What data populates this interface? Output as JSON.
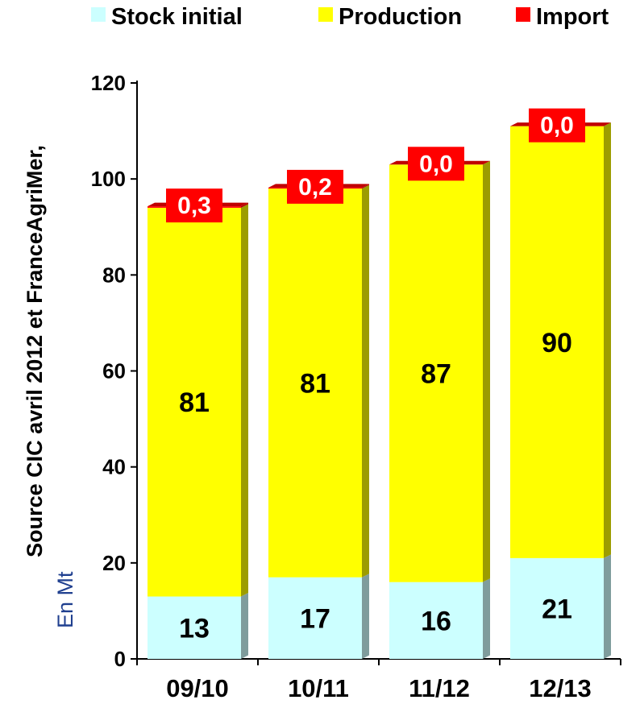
{
  "chart_data": {
    "type": "bar",
    "stacked": true,
    "categories": [
      "09/10",
      "10/11",
      "11/12",
      "12/13"
    ],
    "series": [
      {
        "name": "Stock initial",
        "color": "#ccffff",
        "values": [
          13,
          17,
          16,
          21
        ],
        "labels": [
          "13",
          "17",
          "16",
          "21"
        ]
      },
      {
        "name": "Production",
        "color": "#ffff00",
        "values": [
          81,
          81,
          87,
          90
        ],
        "labels": [
          "81",
          "81",
          "87",
          "90"
        ]
      },
      {
        "name": "Import",
        "color": "#ff0000",
        "values": [
          0.3,
          0.2,
          0.0,
          0.0
        ],
        "labels": [
          "0,3",
          "0,2",
          "0,0",
          "0,0"
        ]
      }
    ],
    "ylim": [
      0,
      120
    ],
    "yticks": [
      "0",
      "20",
      "40",
      "60",
      "80",
      "100",
      "120"
    ],
    "ylabel_line1": "Source CIC avril 2012 et FranceAgriMer,",
    "ylabel_line2": "En Mt",
    "legend_position": "top",
    "grid": false,
    "label_box_color": "#ff0000"
  }
}
